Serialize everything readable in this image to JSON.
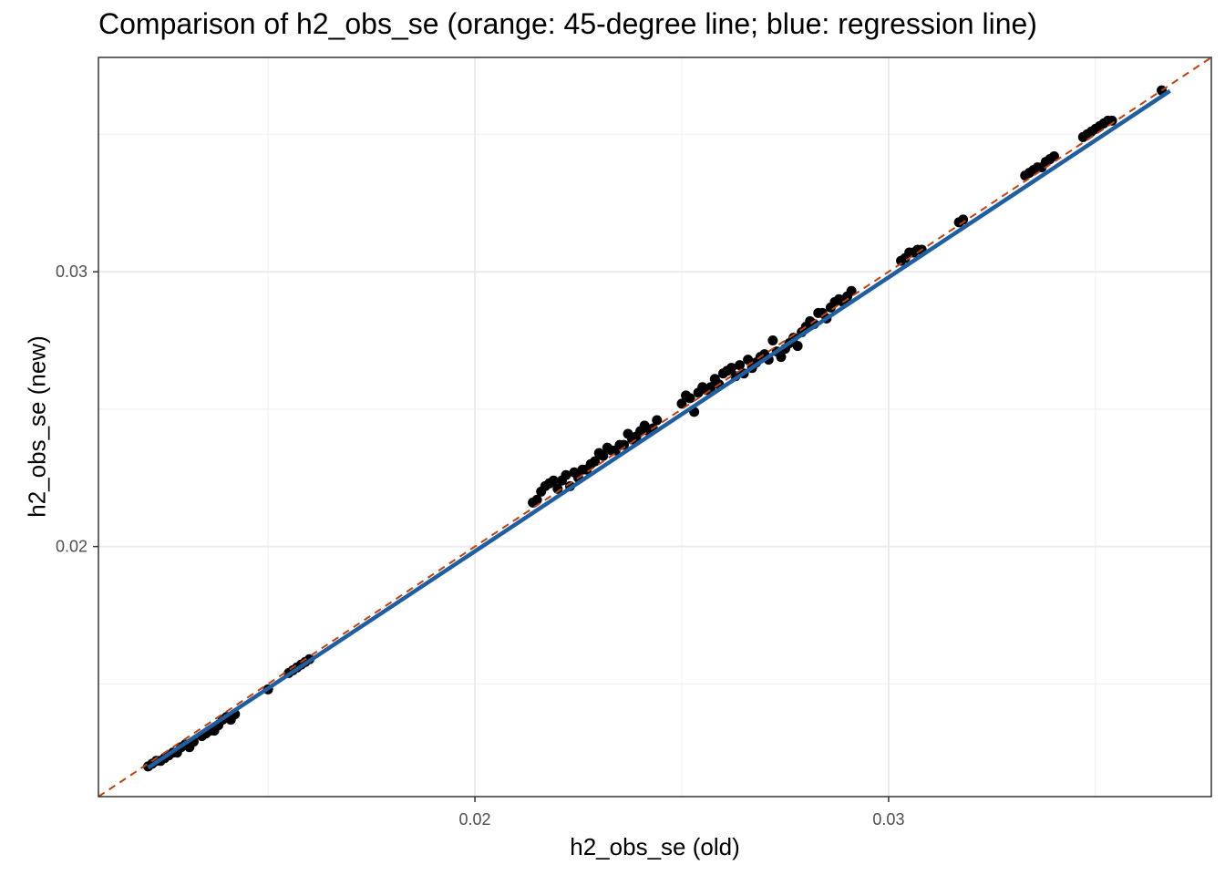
{
  "chart_data": {
    "type": "scatter",
    "title": "Comparison of h2_obs_se (orange: 45-degree line; blue: regression line)",
    "xlabel": "h2_obs_se (old)",
    "ylabel": "h2_obs_se (new)",
    "xlim": [
      0.0109,
      0.0378
    ],
    "ylim": [
      0.0109,
      0.0378
    ],
    "x_ticks": [
      0.02,
      0.03
    ],
    "x_tick_labels": [
      "0.02",
      "0.03"
    ],
    "y_ticks": [
      0.02,
      0.03
    ],
    "y_tick_labels": [
      "0.02",
      "0.03"
    ],
    "grid": true,
    "colors": {
      "points": "#000000",
      "identity_line": "#c0410c",
      "regression_line": "#1f5fa0",
      "grid_major": "#ebebeb",
      "grid_minor": "#f2f2f2",
      "panel_border": "#333333"
    },
    "lines": [
      {
        "role": "identity",
        "style": "dashed",
        "x": [
          0.0109,
          0.0378
        ],
        "y": [
          0.0109,
          0.0378
        ]
      },
      {
        "role": "regression",
        "style": "solid",
        "x": [
          0.0121,
          0.0368
        ],
        "y": [
          0.01195,
          0.03658
        ]
      }
    ],
    "points": [
      [
        0.0121,
        0.012
      ],
      [
        0.0122,
        0.0121
      ],
      [
        0.0123,
        0.0122
      ],
      [
        0.0124,
        0.0122
      ],
      [
        0.0125,
        0.0123
      ],
      [
        0.0126,
        0.0124
      ],
      [
        0.0127,
        0.0125
      ],
      [
        0.0128,
        0.0125
      ],
      [
        0.0129,
        0.0127
      ],
      [
        0.013,
        0.0128
      ],
      [
        0.0131,
        0.0127
      ],
      [
        0.0132,
        0.0129
      ],
      [
        0.0134,
        0.0131
      ],
      [
        0.0135,
        0.0132
      ],
      [
        0.0136,
        0.0133
      ],
      [
        0.0137,
        0.0133
      ],
      [
        0.0138,
        0.0135
      ],
      [
        0.0139,
        0.0137
      ],
      [
        0.014,
        0.0138
      ],
      [
        0.0141,
        0.0137
      ],
      [
        0.0142,
        0.0139
      ],
      [
        0.015,
        0.0148
      ],
      [
        0.0155,
        0.0154
      ],
      [
        0.0156,
        0.0155
      ],
      [
        0.0157,
        0.0156
      ],
      [
        0.0158,
        0.0157
      ],
      [
        0.0159,
        0.0158
      ],
      [
        0.016,
        0.0159
      ],
      [
        0.0214,
        0.0216
      ],
      [
        0.0215,
        0.0217
      ],
      [
        0.0216,
        0.022
      ],
      [
        0.0217,
        0.0222
      ],
      [
        0.0218,
        0.0223
      ],
      [
        0.0219,
        0.0224
      ],
      [
        0.022,
        0.0221
      ],
      [
        0.0221,
        0.0224
      ],
      [
        0.0222,
        0.0226
      ],
      [
        0.0223,
        0.0222
      ],
      [
        0.0224,
        0.0227
      ],
      [
        0.0225,
        0.0225
      ],
      [
        0.0226,
        0.0228
      ],
      [
        0.0227,
        0.0228
      ],
      [
        0.0228,
        0.023
      ],
      [
        0.0229,
        0.0231
      ],
      [
        0.023,
        0.0234
      ],
      [
        0.0231,
        0.0233
      ],
      [
        0.0232,
        0.0236
      ],
      [
        0.0233,
        0.0235
      ],
      [
        0.0234,
        0.0235
      ],
      [
        0.0235,
        0.0237
      ],
      [
        0.0236,
        0.0237
      ],
      [
        0.0237,
        0.0241
      ],
      [
        0.0238,
        0.0239
      ],
      [
        0.0239,
        0.024
      ],
      [
        0.024,
        0.0242
      ],
      [
        0.0241,
        0.0244
      ],
      [
        0.0242,
        0.0242
      ],
      [
        0.0243,
        0.0243
      ],
      [
        0.0244,
        0.0246
      ],
      [
        0.025,
        0.0252
      ],
      [
        0.0251,
        0.0255
      ],
      [
        0.0252,
        0.0254
      ],
      [
        0.0253,
        0.0249
      ],
      [
        0.0254,
        0.0256
      ],
      [
        0.0255,
        0.0258
      ],
      [
        0.0256,
        0.0257
      ],
      [
        0.0257,
        0.0258
      ],
      [
        0.0258,
        0.0261
      ],
      [
        0.0259,
        0.0259
      ],
      [
        0.026,
        0.0263
      ],
      [
        0.0261,
        0.0264
      ],
      [
        0.0262,
        0.0265
      ],
      [
        0.0263,
        0.0262
      ],
      [
        0.0264,
        0.0266
      ],
      [
        0.0265,
        0.0263
      ],
      [
        0.0266,
        0.0268
      ],
      [
        0.0267,
        0.0265
      ],
      [
        0.0268,
        0.0267
      ],
      [
        0.0269,
        0.0269
      ],
      [
        0.027,
        0.027
      ],
      [
        0.0271,
        0.0268
      ],
      [
        0.0272,
        0.0275
      ],
      [
        0.0273,
        0.0271
      ],
      [
        0.0274,
        0.0269
      ],
      [
        0.0275,
        0.0272
      ],
      [
        0.0276,
        0.0274
      ],
      [
        0.0277,
        0.0276
      ],
      [
        0.0278,
        0.0273
      ],
      [
        0.0279,
        0.0278
      ],
      [
        0.028,
        0.028
      ],
      [
        0.0281,
        0.0282
      ],
      [
        0.0282,
        0.0281
      ],
      [
        0.0283,
        0.0285
      ],
      [
        0.0284,
        0.0285
      ],
      [
        0.0285,
        0.0283
      ],
      [
        0.0286,
        0.0287
      ],
      [
        0.0287,
        0.0289
      ],
      [
        0.0288,
        0.029
      ],
      [
        0.0289,
        0.0289
      ],
      [
        0.029,
        0.0291
      ],
      [
        0.0291,
        0.0293
      ],
      [
        0.0303,
        0.0304
      ],
      [
        0.0304,
        0.0305
      ],
      [
        0.0305,
        0.0307
      ],
      [
        0.0306,
        0.0307
      ],
      [
        0.0307,
        0.0308
      ],
      [
        0.0308,
        0.0308
      ],
      [
        0.0317,
        0.0318
      ],
      [
        0.0318,
        0.0319
      ],
      [
        0.0333,
        0.0335
      ],
      [
        0.0334,
        0.0336
      ],
      [
        0.0335,
        0.0337
      ],
      [
        0.0336,
        0.0338
      ],
      [
        0.0337,
        0.0338
      ],
      [
        0.0338,
        0.034
      ],
      [
        0.0339,
        0.0341
      ],
      [
        0.034,
        0.0342
      ],
      [
        0.0347,
        0.0349
      ],
      [
        0.0348,
        0.035
      ],
      [
        0.0349,
        0.0351
      ],
      [
        0.035,
        0.0352
      ],
      [
        0.0351,
        0.0353
      ],
      [
        0.0352,
        0.0354
      ],
      [
        0.0353,
        0.0355
      ],
      [
        0.0354,
        0.0355
      ],
      [
        0.0366,
        0.0366
      ]
    ]
  }
}
